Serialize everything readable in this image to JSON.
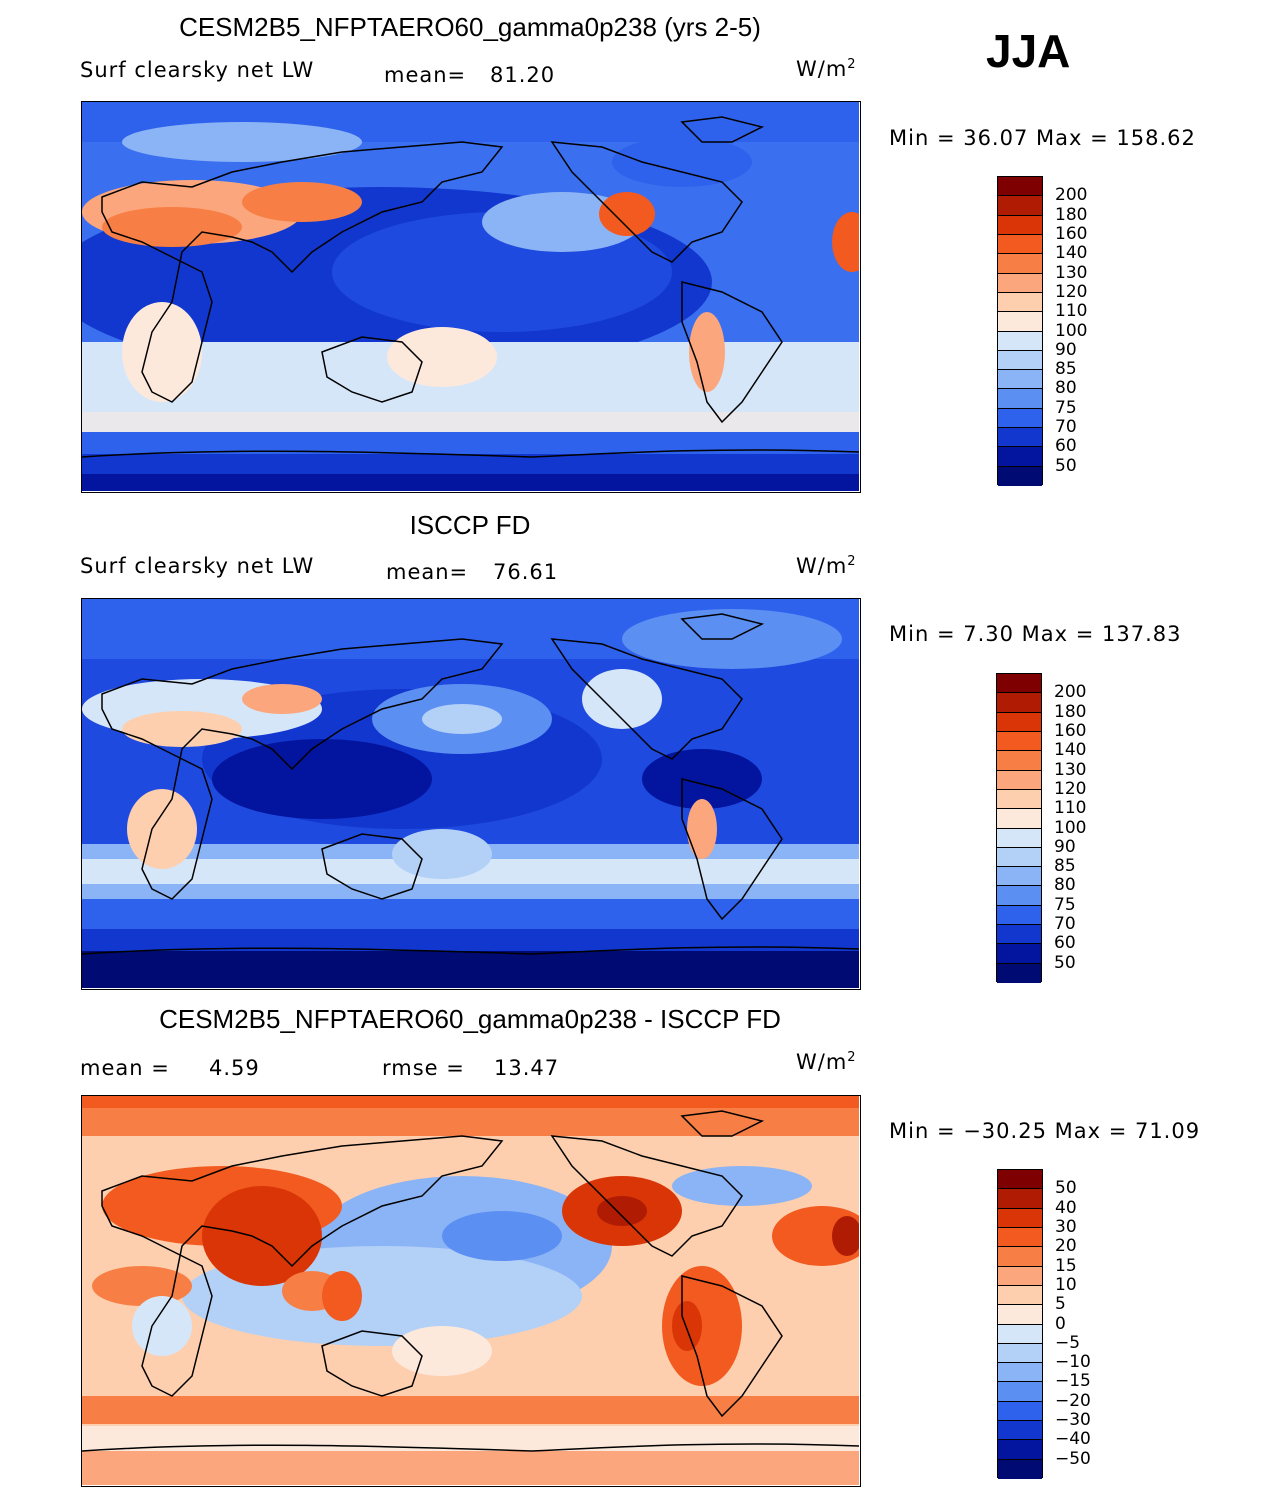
{
  "season": "JJA",
  "units_base": "W/m",
  "units_exp": "2",
  "panels": [
    {
      "title": "CESM2B5_NFPTAERO60_gamma0p238 (yrs 2-5)",
      "variable": "Surf clearsky net LW",
      "stat1_label": "mean=",
      "stat1_value": "81.20",
      "stat2_label": "",
      "stat2_value": "",
      "minmax": "Min =   36.07 Max = 158.62",
      "colorbar": {
        "labels": [
          "200",
          "180",
          "160",
          "140",
          "130",
          "120",
          "110",
          "100",
          "90",
          "85",
          "80",
          "75",
          "70",
          "60",
          "50"
        ],
        "colors": [
          "#7f0000",
          "#b01c03",
          "#d93506",
          "#f25a1f",
          "#f77f45",
          "#fba67c",
          "#fdcfae",
          "#fde9dc",
          "#d6e6f9",
          "#b3d0f7",
          "#8ab4f5",
          "#5c8ff2",
          "#2f62ec",
          "#1237cf",
          "#03159e",
          "#000a73"
        ]
      }
    },
    {
      "title": "ISCCP FD",
      "variable": "Surf clearsky net LW",
      "stat1_label": "mean=",
      "stat1_value": "76.61",
      "stat2_label": "",
      "stat2_value": "",
      "minmax": "Min =    7.30 Max = 137.83",
      "colorbar": {
        "labels": [
          "200",
          "180",
          "160",
          "140",
          "130",
          "120",
          "110",
          "100",
          "90",
          "85",
          "80",
          "75",
          "70",
          "60",
          "50"
        ],
        "colors": [
          "#7f0000",
          "#b01c03",
          "#d93506",
          "#f25a1f",
          "#f77f45",
          "#fba67c",
          "#fdcfae",
          "#fde9dc",
          "#d6e6f9",
          "#b3d0f7",
          "#8ab4f5",
          "#5c8ff2",
          "#2f62ec",
          "#1237cf",
          "#03159e",
          "#000a73"
        ]
      }
    },
    {
      "title": "CESM2B5_NFPTAERO60_gamma0p238 - ISCCP FD",
      "variable": "",
      "stat1_label": "mean =",
      "stat1_value": "4.59",
      "stat2_label": "rmse =",
      "stat2_value": "13.47",
      "minmax": "Min = −30.25 Max =  71.09",
      "colorbar": {
        "labels": [
          "50",
          "40",
          "30",
          "20",
          "15",
          "10",
          "5",
          "0",
          "−5",
          "−10",
          "−15",
          "−20",
          "−30",
          "−40",
          "−50"
        ],
        "colors": [
          "#7f0000",
          "#b01c03",
          "#d93506",
          "#f25a1f",
          "#f77f45",
          "#fba67c",
          "#fdcfae",
          "#fde9dc",
          "#d6e6f9",
          "#b3d0f7",
          "#8ab4f5",
          "#5c8ff2",
          "#2f62ec",
          "#1237cf",
          "#03159e",
          "#000a73"
        ]
      }
    }
  ]
}
